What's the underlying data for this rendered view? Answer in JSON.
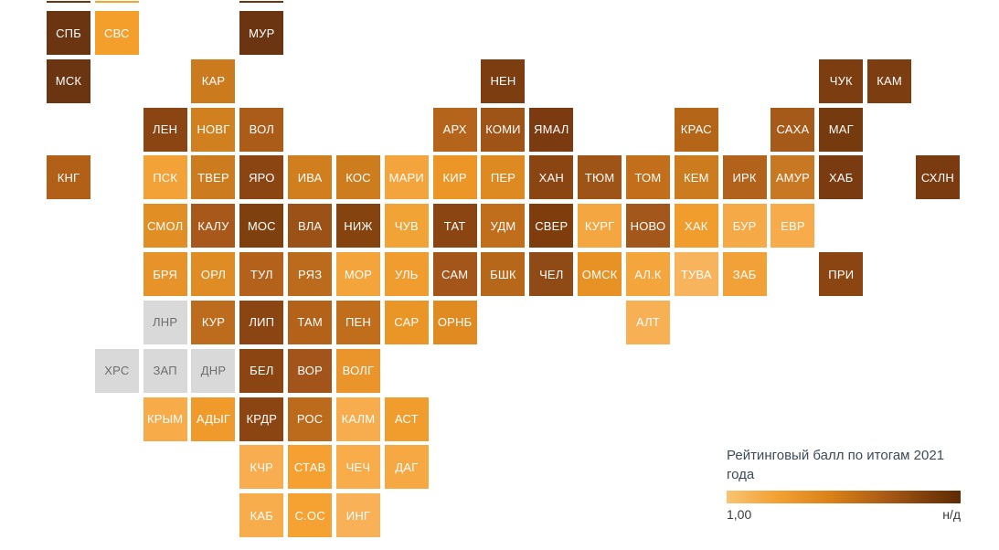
{
  "chart_data": {
    "type": "heatmap",
    "subtype": "tile-grid-cartogram",
    "title": "Рейтинговый балл по итогам 2021 года",
    "grid": {
      "cols": 19,
      "rows": 11
    },
    "value_encoding": "color (light orange = 1,00 ... dark brown; grey = н/д)",
    "tiles": [
      {
        "label": "СПБ",
        "row": 0,
        "col": 0,
        "color": "#6b3511"
      },
      {
        "label": "СВС",
        "row": 0,
        "col": 1,
        "color": "#f49e2c"
      },
      {
        "label": "МУР",
        "row": 0,
        "col": 4,
        "color": "#6b3511"
      },
      {
        "label": "МСК",
        "row": 1,
        "col": 0,
        "color": "#6b3511"
      },
      {
        "label": "КАР",
        "row": 1,
        "col": 3,
        "color": "#cb7b1e"
      },
      {
        "label": "НЕН",
        "row": 1,
        "col": 9,
        "color": "#7c3e10"
      },
      {
        "label": "ЧУК",
        "row": 1,
        "col": 16,
        "color": "#7c3e10"
      },
      {
        "label": "КАМ",
        "row": 1,
        "col": 17,
        "color": "#7c3e10"
      },
      {
        "label": "ЛЕН",
        "row": 2,
        "col": 2,
        "color": "#8a4513"
      },
      {
        "label": "НОВГ",
        "row": 2,
        "col": 3,
        "color": "#d0801f"
      },
      {
        "label": "ВОЛ",
        "row": 2,
        "col": 4,
        "color": "#aa5c18"
      },
      {
        "label": "АРХ",
        "row": 2,
        "col": 8,
        "color": "#b4641b"
      },
      {
        "label": "КОМИ",
        "row": 2,
        "col": 9,
        "color": "#9e5317"
      },
      {
        "label": "ЯМАЛ",
        "row": 2,
        "col": 10,
        "color": "#7b3a10"
      },
      {
        "label": "КРАС",
        "row": 2,
        "col": 13,
        "color": "#b56518"
      },
      {
        "label": "САХА",
        "row": 2,
        "col": 15,
        "color": "#a65a19"
      },
      {
        "label": "МАГ",
        "row": 2,
        "col": 16,
        "color": "#753a0d"
      },
      {
        "label": "КНГ",
        "row": 3,
        "col": 0,
        "color": "#b26017"
      },
      {
        "label": "ПСК",
        "row": 3,
        "col": 2,
        "color": "#f2a237"
      },
      {
        "label": "ТВЕР",
        "row": 3,
        "col": 3,
        "color": "#cc7c1e"
      },
      {
        "label": "ЯРО",
        "row": 3,
        "col": 4,
        "color": "#8a4513"
      },
      {
        "label": "ИВА",
        "row": 3,
        "col": 5,
        "color": "#d07e1e"
      },
      {
        "label": "КОС",
        "row": 3,
        "col": 6,
        "color": "#ce7d1e"
      },
      {
        "label": "МАРИ",
        "row": 3,
        "col": 7,
        "color": "#f4a43c"
      },
      {
        "label": "КИР",
        "row": 3,
        "col": 8,
        "color": "#ec9627"
      },
      {
        "label": "ПЕР",
        "row": 3,
        "col": 9,
        "color": "#dd8a22"
      },
      {
        "label": "ХАН",
        "row": 3,
        "col": 10,
        "color": "#8a4513"
      },
      {
        "label": "ТЮМ",
        "row": 3,
        "col": 11,
        "color": "#9e5317"
      },
      {
        "label": "ТОМ",
        "row": 3,
        "col": 12,
        "color": "#c26e1a"
      },
      {
        "label": "КЕМ",
        "row": 3,
        "col": 13,
        "color": "#cc7c1e"
      },
      {
        "label": "ИРК",
        "row": 3,
        "col": 14,
        "color": "#b2621b"
      },
      {
        "label": "АМУР",
        "row": 3,
        "col": 15,
        "color": "#c87722"
      },
      {
        "label": "ХАБ",
        "row": 3,
        "col": 16,
        "color": "#7b3b10"
      },
      {
        "label": "СХЛН",
        "row": 3,
        "col": 18,
        "color": "#7b3b10"
      },
      {
        "label": "СМОЛ",
        "row": 4,
        "col": 2,
        "color": "#e18e25"
      },
      {
        "label": "КАЛУ",
        "row": 4,
        "col": 3,
        "color": "#a7581a"
      },
      {
        "label": "МОС",
        "row": 4,
        "col": 4,
        "color": "#7f400f"
      },
      {
        "label": "ВЛА",
        "row": 4,
        "col": 5,
        "color": "#9c5117"
      },
      {
        "label": "НИЖ",
        "row": 4,
        "col": 6,
        "color": "#84430f"
      },
      {
        "label": "ЧУВ",
        "row": 4,
        "col": 7,
        "color": "#f2a335"
      },
      {
        "label": "ТАТ",
        "row": 4,
        "col": 8,
        "color": "#8a4513"
      },
      {
        "label": "УДМ",
        "row": 4,
        "col": 9,
        "color": "#c06e1c"
      },
      {
        "label": "СВЕР",
        "row": 4,
        "col": 10,
        "color": "#7f3c0c"
      },
      {
        "label": "КУРГ",
        "row": 4,
        "col": 11,
        "color": "#f4a740"
      },
      {
        "label": "НОВО",
        "row": 4,
        "col": 12,
        "color": "#a3571a"
      },
      {
        "label": "ХАК",
        "row": 4,
        "col": 13,
        "color": "#f09d2d"
      },
      {
        "label": "БУР",
        "row": 4,
        "col": 14,
        "color": "#f5a947"
      },
      {
        "label": "ЕВР",
        "row": 4,
        "col": 15,
        "color": "#f7ab4a"
      },
      {
        "label": "БРЯ",
        "row": 5,
        "col": 2,
        "color": "#e8922a"
      },
      {
        "label": "ОРЛ",
        "row": 5,
        "col": 3,
        "color": "#df8c24"
      },
      {
        "label": "ТУЛ",
        "row": 5,
        "col": 4,
        "color": "#b3611b"
      },
      {
        "label": "РЯЗ",
        "row": 5,
        "col": 5,
        "color": "#bc6a1c"
      },
      {
        "label": "МОР",
        "row": 5,
        "col": 6,
        "color": "#f3a53c"
      },
      {
        "label": "УЛЬ",
        "row": 5,
        "col": 7,
        "color": "#f09c2e"
      },
      {
        "label": "САМ",
        "row": 5,
        "col": 8,
        "color": "#a4561a"
      },
      {
        "label": "БШК",
        "row": 5,
        "col": 9,
        "color": "#b76719"
      },
      {
        "label": "ЧЕЛ",
        "row": 5,
        "col": 10,
        "color": "#8f4a16"
      },
      {
        "label": "ОМСК",
        "row": 5,
        "col": 11,
        "color": "#e89124"
      },
      {
        "label": "АЛ.К",
        "row": 5,
        "col": 12,
        "color": "#f4a53c"
      },
      {
        "label": "ТУВА",
        "row": 5,
        "col": 13,
        "color": "#f8b45c"
      },
      {
        "label": "ЗАБ",
        "row": 5,
        "col": 14,
        "color": "#f2a138"
      },
      {
        "label": "ПРИ",
        "row": 5,
        "col": 16,
        "color": "#8a4513"
      },
      {
        "label": "ЛНР",
        "row": 6,
        "col": 2,
        "color": "#d9d9d9",
        "no_data": true
      },
      {
        "label": "КУР",
        "row": 6,
        "col": 3,
        "color": "#bd6b1c"
      },
      {
        "label": "ЛИП",
        "row": 6,
        "col": 4,
        "color": "#8a4513"
      },
      {
        "label": "ТАМ",
        "row": 6,
        "col": 5,
        "color": "#b4621a"
      },
      {
        "label": "ПЕН",
        "row": 6,
        "col": 6,
        "color": "#c06e1c"
      },
      {
        "label": "САР",
        "row": 6,
        "col": 7,
        "color": "#ea9627"
      },
      {
        "label": "ОРНБ",
        "row": 6,
        "col": 8,
        "color": "#e08a22"
      },
      {
        "label": "АЛТ",
        "row": 6,
        "col": 12,
        "color": "#f8b055"
      },
      {
        "label": "ХРС",
        "row": 7,
        "col": 1,
        "color": "#d9d9d9",
        "no_data": true
      },
      {
        "label": "ЗАП",
        "row": 7,
        "col": 2,
        "color": "#d9d9d9",
        "no_data": true
      },
      {
        "label": "ДНР",
        "row": 7,
        "col": 3,
        "color": "#d9d9d9",
        "no_data": true
      },
      {
        "label": "БЕЛ",
        "row": 7,
        "col": 4,
        "color": "#8a4513"
      },
      {
        "label": "ВОР",
        "row": 7,
        "col": 5,
        "color": "#a3541a"
      },
      {
        "label": "ВОЛГ",
        "row": 7,
        "col": 6,
        "color": "#e9952b"
      },
      {
        "label": "КРЫМ",
        "row": 8,
        "col": 2,
        "color": "#f7ab49"
      },
      {
        "label": "АДЫГ",
        "row": 8,
        "col": 3,
        "color": "#ef9a2b"
      },
      {
        "label": "КРДР",
        "row": 8,
        "col": 4,
        "color": "#8a4513"
      },
      {
        "label": "РОС",
        "row": 8,
        "col": 5,
        "color": "#bc6a1c"
      },
      {
        "label": "КАЛМ",
        "row": 8,
        "col": 6,
        "color": "#f7ad4e"
      },
      {
        "label": "АСТ",
        "row": 8,
        "col": 7,
        "color": "#f09d2e"
      },
      {
        "label": "КЧР",
        "row": 9,
        "col": 4,
        "color": "#f8ae50"
      },
      {
        "label": "СТАВ",
        "row": 9,
        "col": 5,
        "color": "#f5a030"
      },
      {
        "label": "ЧЕЧ",
        "row": 9,
        "col": 6,
        "color": "#f8ac4a"
      },
      {
        "label": "ДАГ",
        "row": 9,
        "col": 7,
        "color": "#f6a843"
      },
      {
        "label": "КАБ",
        "row": 10,
        "col": 4,
        "color": "#f8ad4d"
      },
      {
        "label": "С.ОС",
        "row": 10,
        "col": 5,
        "color": "#f5a232"
      },
      {
        "label": "ИНГ",
        "row": 10,
        "col": 6,
        "color": "#f9b158"
      }
    ],
    "partial_tiles_cut_off_at_top": [
      {
        "col": 0,
        "color": "#6b3511"
      },
      {
        "col": 1,
        "color": "#f4a62e"
      },
      {
        "col": 4,
        "color": "#6b3511"
      }
    ]
  },
  "legend": {
    "title": "Рейтинговый балл по итогам 2021 года",
    "min_label": "1,00",
    "max_label": "н/д",
    "gradient_stops": [
      "#fbc373 0%",
      "#f2a032 22%",
      "#d88019 45%",
      "#aa5a16 68%",
      "#7d3d0c 86%",
      "#5e2c03 100%"
    ],
    "no_data_color": "#d9d9d9"
  }
}
